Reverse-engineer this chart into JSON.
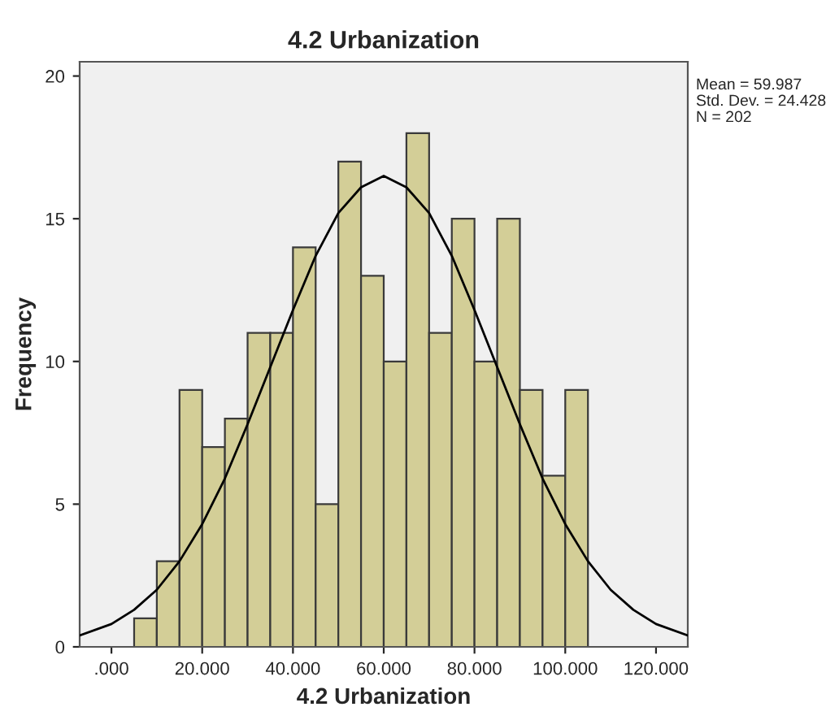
{
  "chart_data": {
    "type": "histogram",
    "title": "4.2 Urbanization",
    "xlabel": "4.2 Urbanization",
    "ylabel": "Frequency",
    "bins": [
      5,
      10,
      15,
      20,
      25,
      30,
      35,
      40,
      45,
      50,
      55,
      60,
      65,
      70,
      75,
      80,
      85,
      90,
      95,
      100,
      105
    ],
    "values": [
      1,
      3,
      9,
      7,
      8,
      11,
      11,
      14,
      5,
      17,
      13,
      10,
      18,
      11,
      15,
      10,
      15,
      9,
      6,
      9
    ],
    "color": "#d3ce97",
    "series": [
      {
        "type": "line",
        "color": "#000000",
        "x": [
          -7,
          0,
          5,
          10,
          15,
          20,
          25,
          30,
          35,
          40,
          45,
          50,
          55,
          60,
          65,
          70,
          75,
          80,
          85,
          90,
          95,
          100,
          105,
          110,
          115,
          120,
          127
        ],
        "values": [
          0.4,
          0.8,
          1.3,
          2.0,
          3.0,
          4.3,
          5.9,
          7.8,
          9.8,
          11.8,
          13.7,
          15.2,
          16.1,
          16.5,
          16.1,
          15.2,
          13.7,
          11.8,
          9.8,
          7.8,
          5.9,
          4.3,
          3.0,
          2.0,
          1.3,
          0.8,
          0.4
        ]
      }
    ],
    "xlim": [
      -7,
      127
    ],
    "ylim": [
      0,
      20.5
    ],
    "xticks": [
      {
        "value": 0,
        "label": ".000"
      },
      {
        "value": 20,
        "label": "20.000"
      },
      {
        "value": 40,
        "label": "40.000"
      },
      {
        "value": 60,
        "label": "60.000"
      },
      {
        "value": 80,
        "label": "80.000"
      },
      {
        "value": 100,
        "label": "100.000"
      },
      {
        "value": 120,
        "label": "120.000"
      }
    ],
    "yticks": [
      0,
      5,
      10,
      15,
      20
    ],
    "annotations": [
      "Mean = 59.987",
      "Std. Dev. = 24.428",
      "N = 202"
    ]
  }
}
